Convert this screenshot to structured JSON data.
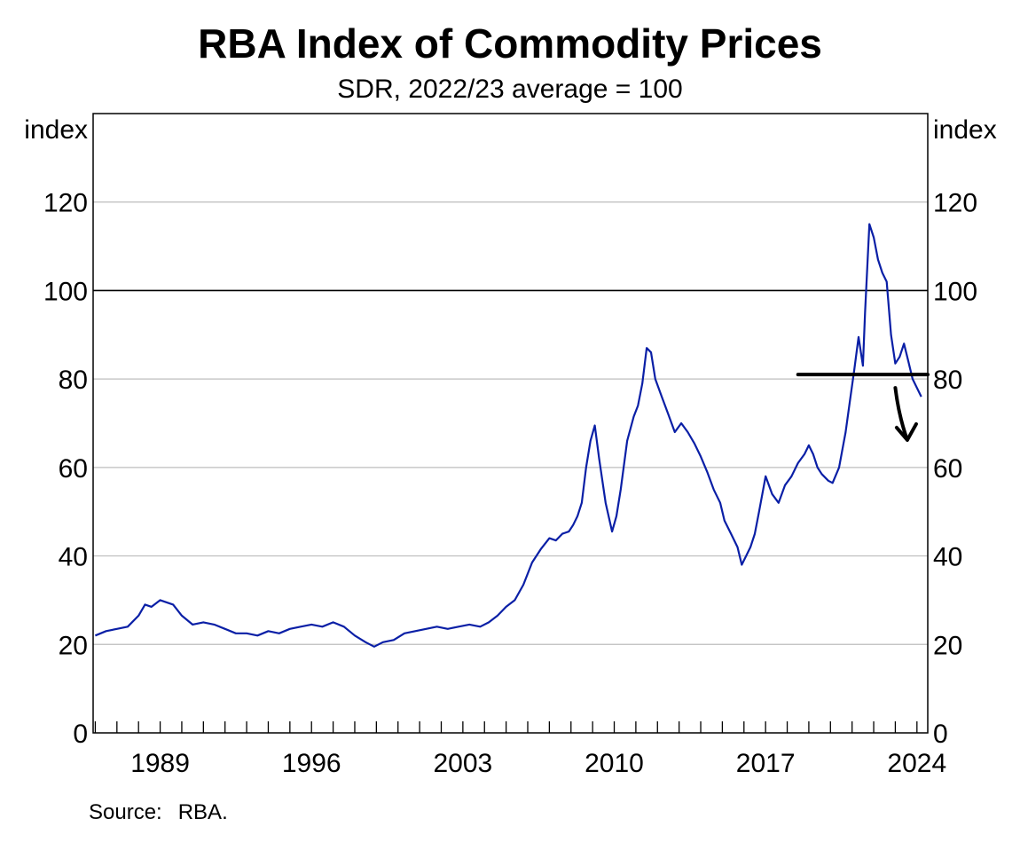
{
  "colors": {
    "series": "#0a1fa6",
    "grid": "#bdbdbd",
    "reference": "#000000",
    "annotation": "#000000"
  },
  "chart_data": {
    "type": "line",
    "title": "RBA Index of Commodity Prices",
    "subtitle": "SDR, 2022/23 average = 100",
    "ylabel_left": "index",
    "ylabel_right": "index",
    "source_label": "Source:",
    "source_value": "RBA.",
    "ylim": [
      0,
      140
    ],
    "yticks": [
      0,
      20,
      40,
      60,
      80,
      100,
      120
    ],
    "ytick_labels": [
      "0",
      "20",
      "40",
      "60",
      "80",
      "100",
      "120"
    ],
    "xlim": [
      1985.9,
      2024.5
    ],
    "xticks": [
      1989,
      1996,
      2003,
      2010,
      2017,
      2024
    ],
    "xtick_labels": [
      "1989",
      "1996",
      "2003",
      "2010",
      "2017",
      "2024"
    ],
    "minor_xticks_from": 1986,
    "minor_xticks_to": 2024,
    "grid": true,
    "reference_line": 100,
    "annotations": [
      {
        "type": "horizontal-line",
        "y": 81,
        "x_from": 2018.5,
        "x_to": 2024.5
      },
      {
        "type": "down-arrow",
        "from": [
          2023.0,
          78
        ],
        "to": [
          2023.8,
          65
        ]
      }
    ],
    "series": [
      {
        "x": [
          1986.0,
          1986.5,
          1987.0,
          1987.5,
          1988.0,
          1988.3,
          1988.6,
          1989.0,
          1989.3,
          1989.6,
          1990.0,
          1990.5,
          1991.0,
          1991.5,
          1992.0,
          1992.5,
          1993.0,
          1993.5,
          1994.0,
          1994.5,
          1995.0,
          1995.5,
          1996.0,
          1996.5,
          1997.0,
          1997.5,
          1998.0,
          1998.5,
          1998.9,
          1999.3,
          1999.8,
          2000.3,
          2000.8,
          2001.3,
          2001.8,
          2002.3,
          2002.8,
          2003.3,
          2003.8,
          2004.2,
          2004.6,
          2005.0,
          2005.4,
          2005.8,
          2006.2,
          2006.6,
          2007.0,
          2007.3,
          2007.6,
          2007.9,
          2008.1,
          2008.3,
          2008.5,
          2008.7,
          2008.9,
          2009.1,
          2009.3,
          2009.6,
          2009.9,
          2010.1,
          2010.3,
          2010.6,
          2010.9,
          2011.1,
          2011.3,
          2011.5,
          2011.7,
          2011.9,
          2012.2,
          2012.5,
          2012.8,
          2013.1,
          2013.4,
          2013.7,
          2014.0,
          2014.3,
          2014.6,
          2014.9,
          2015.1,
          2015.4,
          2015.7,
          2015.9,
          2016.1,
          2016.3,
          2016.5,
          2016.7,
          2017.0,
          2017.3,
          2017.6,
          2017.9,
          2018.2,
          2018.5,
          2018.8,
          2019.0,
          2019.2,
          2019.4,
          2019.6,
          2019.9,
          2020.1,
          2020.4,
          2020.7,
          2020.9,
          2021.1,
          2021.3,
          2021.5,
          2021.6,
          2021.8,
          2022.0,
          2022.2,
          2022.4,
          2022.6,
          2022.8,
          2023.0,
          2023.2,
          2023.4,
          2023.6,
          2023.8,
          2024.0,
          2024.2
        ],
        "values": [
          22.0,
          23.0,
          23.5,
          24.0,
          26.5,
          29.0,
          28.5,
          30.0,
          29.5,
          29.0,
          26.5,
          24.5,
          25.0,
          24.5,
          23.5,
          22.5,
          22.5,
          22.0,
          23.0,
          22.5,
          23.5,
          24.0,
          24.5,
          24.0,
          25.0,
          24.0,
          22.0,
          20.5,
          19.5,
          20.5,
          21.0,
          22.5,
          23.0,
          23.5,
          24.0,
          23.5,
          24.0,
          24.5,
          24.0,
          25.0,
          26.5,
          28.5,
          30.0,
          33.5,
          38.5,
          41.5,
          44.0,
          43.5,
          45.0,
          45.5,
          47.0,
          49.0,
          52.0,
          60.0,
          66.0,
          69.5,
          62.0,
          52.0,
          45.5,
          49.0,
          55.0,
          66.0,
          71.5,
          74.0,
          79.0,
          87.0,
          86.0,
          80.0,
          76.0,
          72.0,
          68.0,
          70.0,
          68.0,
          65.5,
          62.5,
          59.0,
          55.0,
          52.0,
          48.0,
          45.0,
          42.0,
          38.0,
          40.0,
          42.0,
          45.0,
          50.0,
          58.0,
          54.0,
          52.0,
          56.0,
          58.0,
          61.0,
          63.0,
          65.0,
          63.0,
          60.0,
          58.5,
          57.0,
          56.5,
          60.0,
          68.0,
          75.0,
          82.0,
          89.5,
          83.0,
          95.0,
          115.0,
          112.0,
          107.0,
          104.0,
          102.0,
          90.0,
          83.5,
          85.0,
          88.0,
          84.0,
          80.0,
          78.0,
          76.0
        ]
      }
    ]
  }
}
